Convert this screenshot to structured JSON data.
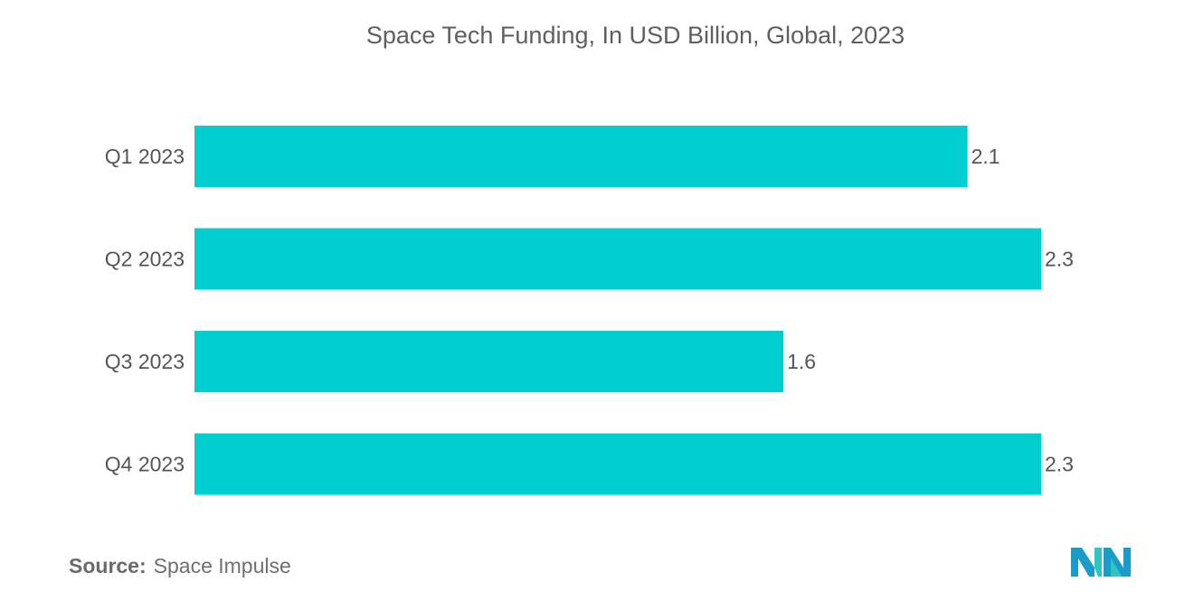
{
  "chart_data": {
    "type": "bar",
    "orientation": "horizontal",
    "title": "Space Tech Funding, In USD Billion, Global, 2023",
    "categories": [
      "Q1 2023",
      "Q2 2023",
      "Q3 2023",
      "Q4 2023"
    ],
    "values": [
      2.1,
      2.3,
      1.6,
      2.3
    ],
    "value_labels": [
      "2.1",
      "2.3",
      "1.6",
      "2.3"
    ],
    "xlabel": "",
    "ylabel": "",
    "xlim": [
      0,
      2.3
    ],
    "grid": false,
    "legend": "none",
    "bar_color": "#00ced1"
  },
  "footer": {
    "source_label": "Source:",
    "source_value": "Space Impulse"
  },
  "logo": {
    "icon": "mordor-intelligence-logo-icon",
    "colors": [
      "#1a9cc9",
      "#2ec4c4"
    ]
  }
}
